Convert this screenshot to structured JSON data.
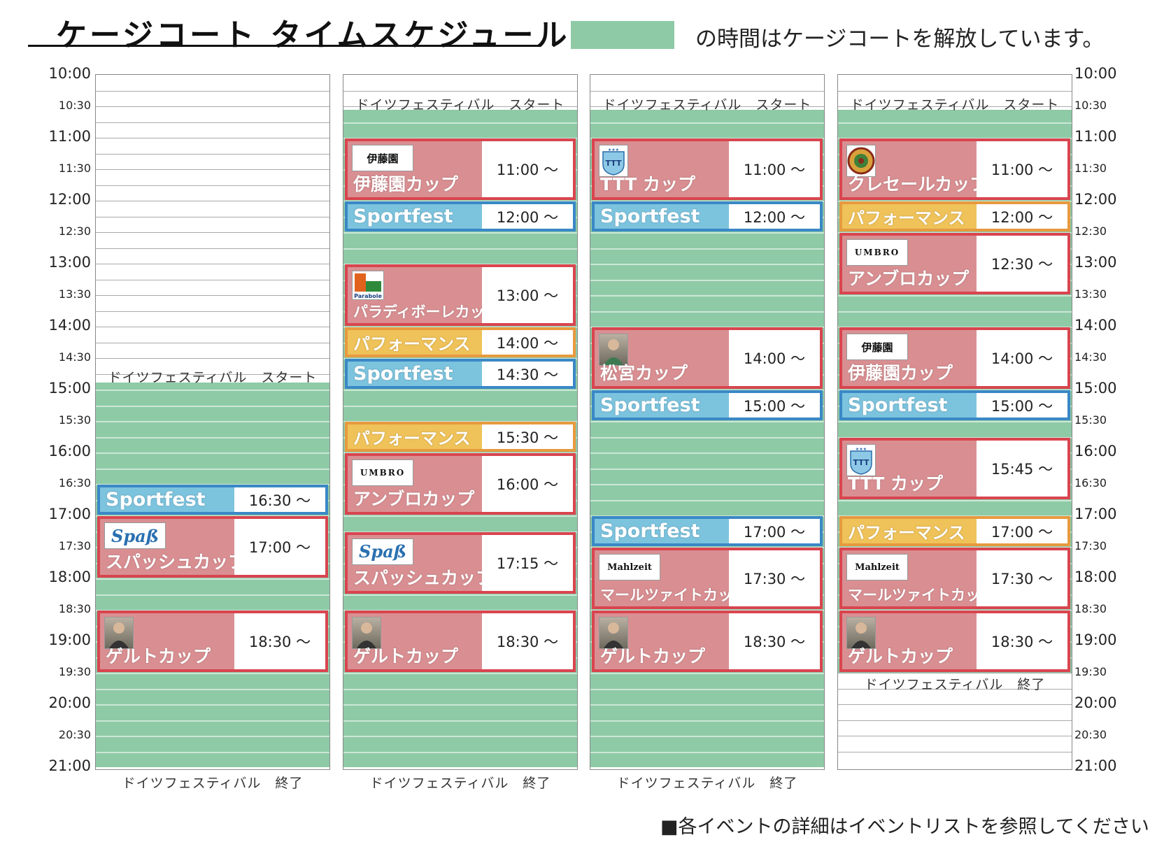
{
  "title": "ケージコート タイムスケジュール",
  "legend": {
    "text": "の時間はケージコートを解放しています。",
    "color": "#8ecaa6"
  },
  "footnote": "■各イベントの詳細はイベントリストを参照してください",
  "time_labels": [
    "10:00",
    "10:30",
    "11:00",
    "11:30",
    "12:00",
    "12:30",
    "13:00",
    "13:30",
    "14:00",
    "14:30",
    "15:00",
    "15:30",
    "16:00",
    "16:30",
    "17:00",
    "17:30",
    "18:00",
    "18:30",
    "19:00",
    "19:30",
    "20:00",
    "20:30",
    "21:00"
  ],
  "colors": {
    "cup_fill": "#d98f92",
    "cup_border": "#d9454f",
    "sport_fill": "#7cc3de",
    "sport_border": "#3a88c6",
    "perf_fill": "#efc25a",
    "perf_border": "#e79a3f",
    "green": "#8ecaa6"
  },
  "columns": [
    {
      "start_label": "ドイツフェスティバル　スタート",
      "start_time": "14:40",
      "end_label": "ドイツフェスティバル　終了",
      "end_time": "21:00",
      "end_label_below": true,
      "events": [
        {
          "kind": "sport",
          "name": "Sportfest",
          "time_label": "16:30 〜",
          "start": "16:30",
          "end": "17:00"
        },
        {
          "kind": "cup",
          "name": "スパッシュカップ",
          "time_label": "17:00 〜",
          "start": "17:00",
          "end": "18:00",
          "logo": "spash-logo",
          "logo_text": "Spaß"
        },
        {
          "kind": "cup",
          "name": "ゲルトカップ",
          "time_label": "18:30 〜",
          "start": "18:30",
          "end": "19:30",
          "logo": "portrait-photo"
        }
      ]
    },
    {
      "start_label": "ドイツフェスティバル　スタート",
      "start_time": "10:20",
      "end_label": "ドイツフェスティバル　終了",
      "end_time": "21:00",
      "end_label_below": true,
      "events": [
        {
          "kind": "cup",
          "name": "伊藤園カップ",
          "time_label": "11:00 〜",
          "start": "11:00",
          "end": "12:00",
          "logo": "itoen-logo",
          "logo_text": "伊藤園"
        },
        {
          "kind": "sport",
          "name": "Sportfest",
          "time_label": "12:00 〜",
          "start": "12:00",
          "end": "12:30"
        },
        {
          "kind": "cup",
          "name": "パラディボーレカップ",
          "time_label": "13:00 〜",
          "start": "13:00",
          "end": "14:00",
          "logo": "parabole-logo",
          "logo_text": "Parabole"
        },
        {
          "kind": "perf",
          "name": "パフォーマンス",
          "time_label": "14:00 〜",
          "start": "14:00",
          "end": "14:30"
        },
        {
          "kind": "sport",
          "name": "Sportfest",
          "time_label": "14:30 〜",
          "start": "14:30",
          "end": "15:00"
        },
        {
          "kind": "perf",
          "name": "パフォーマンス",
          "time_label": "15:30 〜",
          "start": "15:30",
          "end": "16:00"
        },
        {
          "kind": "cup",
          "name": "アンブロカップ",
          "time_label": "16:00 〜",
          "start": "16:00",
          "end": "17:00",
          "logo": "umbro-logo",
          "logo_text": "UMBRO"
        },
        {
          "kind": "cup",
          "name": "スパッシュカップ",
          "time_label": "17:15 〜",
          "start": "17:15",
          "end": "18:15",
          "logo": "spash-logo",
          "logo_text": "Spaß"
        },
        {
          "kind": "cup",
          "name": "ゲルトカップ",
          "time_label": "18:30 〜",
          "start": "18:30",
          "end": "19:30",
          "logo": "portrait-photo"
        }
      ]
    },
    {
      "start_label": "ドイツフェスティバル　スタート",
      "start_time": "10:20",
      "end_label": "ドイツフェスティバル　終了",
      "end_time": "21:00",
      "end_label_below": true,
      "events": [
        {
          "kind": "cup",
          "name": "TTT カップ",
          "time_label": "11:00 〜",
          "start": "11:00",
          "end": "12:00",
          "logo": "ttt-logo",
          "logo_text": "TTT"
        },
        {
          "kind": "sport",
          "name": "Sportfest",
          "time_label": "12:00 〜",
          "start": "12:00",
          "end": "12:30"
        },
        {
          "kind": "cup",
          "name": "松宮カップ",
          "time_label": "14:00 〜",
          "start": "14:00",
          "end": "15:00",
          "logo": "player-photo"
        },
        {
          "kind": "sport",
          "name": "Sportfest",
          "time_label": "15:00 〜",
          "start": "15:00",
          "end": "15:30"
        },
        {
          "kind": "sport",
          "name": "Sportfest",
          "time_label": "17:00 〜",
          "start": "17:00",
          "end": "17:30"
        },
        {
          "kind": "cup",
          "name": "マールツァイトカップ",
          "time_label": "17:30 〜",
          "start": "17:30",
          "end": "18:30",
          "logo": "mahlzeit-logo",
          "logo_text": "Mahlzeit"
        },
        {
          "kind": "cup",
          "name": "ゲルトカップ",
          "time_label": "18:30 〜",
          "start": "18:30",
          "end": "19:30",
          "logo": "portrait-photo"
        }
      ]
    },
    {
      "start_label": "ドイツフェスティバル　スタート",
      "start_time": "10:20",
      "end_label": "ドイツフェスティバル　終了",
      "end_time": "19:30",
      "end_label_below": false,
      "events": [
        {
          "kind": "cup",
          "name": "クレセールカップ",
          "time_label": "11:00 〜",
          "start": "11:00",
          "end": "12:00",
          "logo": "kresel-logo"
        },
        {
          "kind": "perf",
          "name": "パフォーマンス",
          "time_label": "12:00 〜",
          "start": "12:00",
          "end": "12:30"
        },
        {
          "kind": "cup",
          "name": "アンブロカップ",
          "time_label": "12:30 〜",
          "start": "12:30",
          "end": "13:30",
          "logo": "umbro-logo",
          "logo_text": "UMBRO"
        },
        {
          "kind": "cup",
          "name": "伊藤園カップ",
          "time_label": "14:00 〜",
          "start": "14:00",
          "end": "15:00",
          "logo": "itoen-logo",
          "logo_text": "伊藤園"
        },
        {
          "kind": "sport",
          "name": "Sportfest",
          "time_label": "15:00 〜",
          "start": "15:00",
          "end": "15:30"
        },
        {
          "kind": "cup",
          "name": "TTT カップ",
          "time_label": "15:45 〜",
          "start": "15:45",
          "end": "16:45",
          "logo": "ttt-logo",
          "logo_text": "TTT"
        },
        {
          "kind": "perf",
          "name": "パフォーマンス",
          "time_label": "17:00 〜",
          "start": "17:00",
          "end": "17:30"
        },
        {
          "kind": "cup",
          "name": "マールツァイトカップ",
          "time_label": "17:30 〜",
          "start": "17:30",
          "end": "18:30",
          "logo": "mahlzeit-logo",
          "logo_text": "Mahlzeit"
        },
        {
          "kind": "cup",
          "name": "ゲルトカップ",
          "time_label": "18:30 〜",
          "start": "18:30",
          "end": "19:30",
          "logo": "portrait-photo"
        }
      ]
    }
  ]
}
